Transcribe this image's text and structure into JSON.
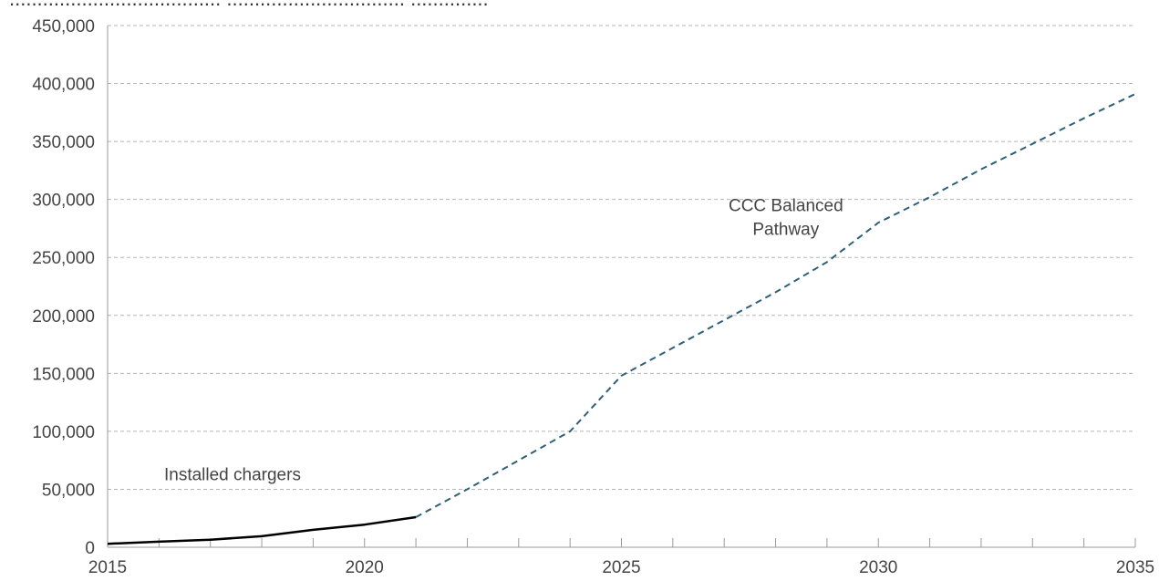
{
  "chart_data": {
    "type": "line",
    "title_fragment": "...................................... ................................ ..............",
    "xlabel": "",
    "ylabel": "",
    "xlim": [
      2015,
      2035
    ],
    "ylim": [
      0,
      450000
    ],
    "x_ticks": [
      "2015",
      "2020",
      "2025",
      "2030",
      "2035"
    ],
    "y_ticks": [
      "0",
      "50,000",
      "100,000",
      "150,000",
      "200,000",
      "250,000",
      "300,000",
      "350,000",
      "400,000",
      "450,000"
    ],
    "grid": {
      "horizontal": true,
      "style": "dashed"
    },
    "series": [
      {
        "key": "installed",
        "style": "solid",
        "color": "#000000",
        "x": [
          2015,
          2016,
          2017,
          2018,
          2019,
          2020,
          2021
        ],
        "y": [
          3000,
          4800,
          6500,
          9500,
          15000,
          19500,
          26000
        ]
      },
      {
        "key": "balanced",
        "style": "dashed",
        "color": "#2e5f7a",
        "x": [
          2021,
          2022,
          2023,
          2024,
          2025,
          2026,
          2027,
          2028,
          2029,
          2030,
          2031,
          2032,
          2033,
          2034,
          2035
        ],
        "y": [
          26000,
          50000,
          75000,
          100000,
          148000,
          172000,
          196000,
          220000,
          246000,
          280000,
          302000,
          326000,
          348000,
          370000,
          391000
        ]
      }
    ],
    "annotations": [
      {
        "key": "installed",
        "lines": [
          "Installed chargers"
        ],
        "anchor_x": 2016.1,
        "anchor_y": 58000,
        "align": "start"
      },
      {
        "key": "balanced",
        "lines": [
          "CCC Balanced",
          "Pathway"
        ],
        "anchor_x": 2028.2,
        "anchor_y": 290000,
        "align": "middle"
      }
    ]
  }
}
